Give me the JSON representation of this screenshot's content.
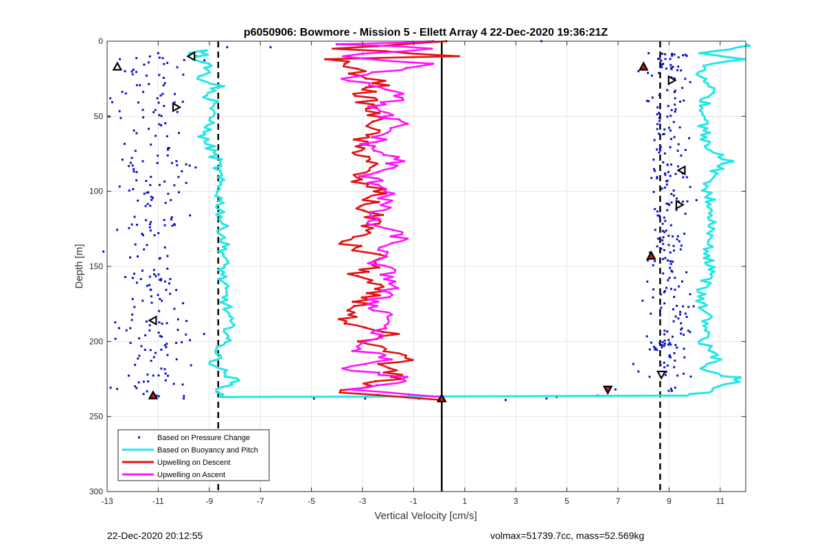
{
  "chart_data": {
    "type": "scatter",
    "title": "p6050906: Bowmore - Mission 5 - Ellett Array 4 22-Dec-2020 19:36:21Z",
    "xlabel": "Vertical Velocity [cm/s]",
    "ylabel": "Depth [m]",
    "xlim": [
      -13,
      12
    ],
    "ylim": [
      0,
      300
    ],
    "y_reversed": true,
    "xticks": [
      "-13",
      "-11",
      "-9",
      "-7",
      "-5",
      "-3",
      "-1",
      "1",
      "3",
      "5",
      "7",
      "9",
      "11"
    ],
    "yticks": [
      "0",
      "50",
      "100",
      "150",
      "200",
      "250",
      "300"
    ],
    "grid": true,
    "legend_location": "lower-left",
    "colors": {
      "pressure": "#0a10c8",
      "buoyancy": "#22e6e6",
      "descent": "#e01010",
      "ascent": "#ff10ff",
      "reference": "#000000"
    },
    "reference_lines": {
      "solid_x": 0.1,
      "dashed_x": [
        -8.65,
        8.65
      ]
    },
    "series": [
      {
        "name": "Based on Pressure Change",
        "style": "dots",
        "clusters": [
          {
            "x_min": -12.8,
            "x_max": -9.6,
            "depth_min": 10,
            "depth_max": 237,
            "count": 240
          },
          {
            "x_min": 8.1,
            "x_max": 9.9,
            "depth_min": 8,
            "depth_max": 234,
            "count": 260
          }
        ],
        "points": [
          [
            -12.5,
            12
          ],
          [
            -12.3,
            20
          ],
          [
            -12.0,
            22
          ],
          [
            -11.0,
            8
          ],
          [
            -9.5,
            10
          ],
          [
            -8.3,
            4
          ],
          [
            -6.6,
            4
          ],
          [
            4.0,
            0
          ],
          [
            8.2,
            8
          ],
          [
            8.0,
            18
          ],
          [
            7.8,
            20
          ],
          [
            -11.1,
            237
          ],
          [
            -10.0,
            238
          ],
          [
            -9.2,
            195
          ],
          [
            -4.9,
            238
          ],
          [
            -2.9,
            238
          ],
          [
            -0.8,
            238
          ],
          [
            2.6,
            239
          ],
          [
            4.2,
            238
          ],
          [
            4.6,
            237
          ],
          [
            6.2,
            236
          ],
          [
            6.6,
            233
          ],
          [
            6.9,
            232
          ],
          [
            7.6,
            215
          ],
          [
            7.8,
            220
          ]
        ]
      },
      {
        "name": "Based on Buoyancy and Pitch",
        "style": "line",
        "points": [
          [
            -9.8,
            8
          ],
          [
            -9.0,
            6
          ],
          [
            -9.5,
            12
          ],
          [
            -8.9,
            15
          ],
          [
            -9.3,
            25
          ],
          [
            -8.6,
            30
          ],
          [
            -9.2,
            36
          ],
          [
            -8.7,
            40
          ],
          [
            -9.0,
            48
          ],
          [
            -8.9,
            56
          ],
          [
            -9.3,
            62
          ],
          [
            -9.0,
            70
          ],
          [
            -8.7,
            80
          ],
          [
            -8.6,
            100
          ],
          [
            -8.5,
            120
          ],
          [
            -8.4,
            140
          ],
          [
            -8.5,
            160
          ],
          [
            -8.3,
            180
          ],
          [
            -8.2,
            195
          ],
          [
            -8.6,
            205
          ],
          [
            -8.8,
            215
          ],
          [
            -8.3,
            222
          ],
          [
            -8.0,
            226
          ],
          [
            -8.5,
            232
          ],
          [
            -8.6,
            237
          ],
          [
            3.0,
            236.5
          ],
          [
            9.5,
            236
          ],
          [
            10.5,
            234
          ],
          [
            11.0,
            230
          ],
          [
            11.6,
            227
          ],
          [
            11.8,
            224
          ],
          [
            10.9,
            223
          ],
          [
            10.4,
            218
          ],
          [
            10.9,
            212
          ],
          [
            10.3,
            200
          ],
          [
            10.5,
            185
          ],
          [
            10.2,
            170
          ],
          [
            10.6,
            155
          ],
          [
            10.5,
            140
          ],
          [
            10.6,
            125
          ],
          [
            10.7,
            110
          ],
          [
            10.4,
            95
          ],
          [
            10.9,
            85
          ],
          [
            11.4,
            80
          ],
          [
            10.5,
            70
          ],
          [
            10.3,
            55
          ],
          [
            10.4,
            40
          ],
          [
            10.7,
            30
          ],
          [
            10.0,
            22
          ],
          [
            10.5,
            15
          ],
          [
            11.8,
            12
          ],
          [
            10.3,
            8
          ],
          [
            11.9,
            4
          ],
          [
            12.0,
            2
          ]
        ]
      },
      {
        "name": "Upwelling on Descent",
        "style": "line",
        "points": [
          [
            0.2,
            0
          ],
          [
            -3.8,
            5
          ],
          [
            0.5,
            10
          ],
          [
            -4.1,
            12
          ],
          [
            -3.3,
            20
          ],
          [
            -2.2,
            28
          ],
          [
            -3.0,
            35
          ],
          [
            -2.7,
            45
          ],
          [
            -2.4,
            55
          ],
          [
            -3.3,
            70
          ],
          [
            -2.6,
            80
          ],
          [
            -3.4,
            92
          ],
          [
            -2.3,
            100
          ],
          [
            -3.0,
            110
          ],
          [
            -2.4,
            120
          ],
          [
            -3.7,
            135
          ],
          [
            -2.2,
            145
          ],
          [
            -3.2,
            155
          ],
          [
            -2.5,
            165
          ],
          [
            -3.0,
            175
          ],
          [
            -4.0,
            188
          ],
          [
            -2.0,
            195
          ],
          [
            -3.0,
            200
          ],
          [
            -2.4,
            205
          ],
          [
            -0.9,
            211
          ],
          [
            -2.3,
            215
          ],
          [
            -1.7,
            225
          ],
          [
            -2.6,
            228
          ],
          [
            -3.8,
            234
          ],
          [
            0.1,
            239
          ]
        ]
      },
      {
        "name": "Upwelling on Ascent",
        "style": "line",
        "points": [
          [
            0.1,
            0
          ],
          [
            -3.7,
            2
          ],
          [
            0.0,
            5
          ],
          [
            -4.2,
            10
          ],
          [
            -0.5,
            15
          ],
          [
            -3.5,
            25
          ],
          [
            -1.2,
            35
          ],
          [
            -2.6,
            45
          ],
          [
            -1.6,
            55
          ],
          [
            -2.8,
            70
          ],
          [
            -1.5,
            80
          ],
          [
            -2.9,
            90
          ],
          [
            -1.8,
            100
          ],
          [
            -2.8,
            120
          ],
          [
            -1.5,
            130
          ],
          [
            -2.6,
            145
          ],
          [
            -1.7,
            160
          ],
          [
            -2.6,
            175
          ],
          [
            -1.8,
            185
          ],
          [
            -3.2,
            205
          ],
          [
            -2.0,
            212
          ],
          [
            -3.8,
            218
          ],
          [
            -1.0,
            225
          ],
          [
            -3.6,
            232
          ],
          [
            0.1,
            237
          ]
        ]
      }
    ],
    "markers": [
      {
        "shape": "triangle-up",
        "x": -12.6,
        "y": 17,
        "fill": "none"
      },
      {
        "shape": "triangle-left",
        "x": -9.7,
        "y": 10,
        "fill": "none"
      },
      {
        "shape": "triangle-right",
        "x": -10.3,
        "y": 44,
        "fill": "none"
      },
      {
        "shape": "triangle-left",
        "x": -11.2,
        "y": 186,
        "fill": "none"
      },
      {
        "shape": "triangle-up",
        "x": -11.2,
        "y": 236,
        "fill": "#e01010"
      },
      {
        "shape": "triangle-up",
        "x": 8.0,
        "y": 17,
        "fill": "#e01010"
      },
      {
        "shape": "triangle-right",
        "x": 9.1,
        "y": 26,
        "fill": "none"
      },
      {
        "shape": "triangle-left",
        "x": 9.5,
        "y": 86,
        "fill": "none"
      },
      {
        "shape": "triangle-right",
        "x": 9.4,
        "y": 109,
        "fill": "none"
      },
      {
        "shape": "triangle-up",
        "x": 8.3,
        "y": 143,
        "fill": "#e01010"
      },
      {
        "shape": "triangle-down",
        "x": 8.7,
        "y": 222,
        "fill": "none"
      },
      {
        "shape": "triangle-down",
        "x": 6.6,
        "y": 232,
        "fill": "#e01010"
      },
      {
        "shape": "triangle-up",
        "x": 0.1,
        "y": 238,
        "fill": "#e01010"
      }
    ]
  },
  "footer": {
    "left": "22-Dec-2020 20:12:55",
    "right": "volmax=51739.7cc, mass=52.569kg"
  }
}
